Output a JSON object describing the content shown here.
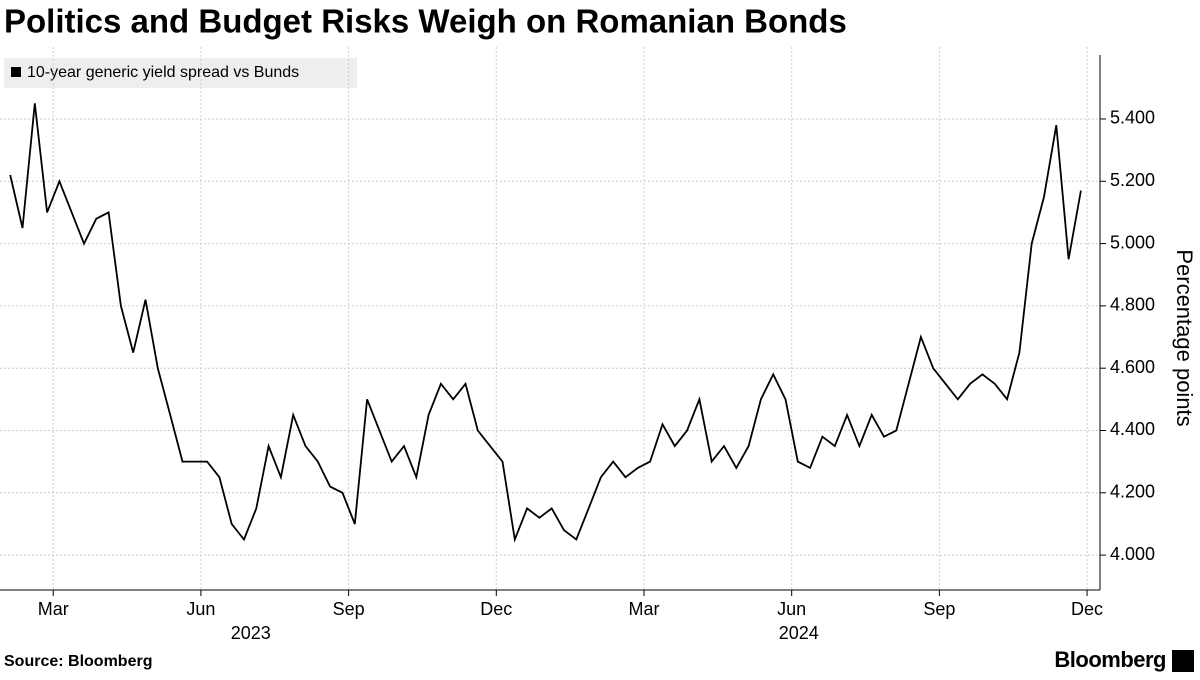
{
  "chart_data": {
    "type": "line",
    "title": "Politics and Budget Risks Weigh on Romanian Bonds",
    "y_axis_label": "Percentage points",
    "source": "Source: Bloomberg",
    "brand": "Bloomberg",
    "x": [
      "2023-02",
      "2023-02",
      "2023-02",
      "2023-02",
      "2023-03",
      "2023-03",
      "2023-03",
      "2023-03",
      "2023-04",
      "2023-04",
      "2023-04",
      "2023-04",
      "2023-05",
      "2023-05",
      "2023-05",
      "2023-05",
      "2023-06",
      "2023-06",
      "2023-06",
      "2023-06",
      "2023-07",
      "2023-07",
      "2023-07",
      "2023-07",
      "2023-08",
      "2023-08",
      "2023-08",
      "2023-08",
      "2023-09",
      "2023-09",
      "2023-09",
      "2023-09",
      "2023-10",
      "2023-10",
      "2023-10",
      "2023-10",
      "2023-11",
      "2023-11",
      "2023-11",
      "2023-11",
      "2023-12",
      "2023-12",
      "2023-12",
      "2023-12",
      "2024-01",
      "2024-01",
      "2024-01",
      "2024-01",
      "2024-02",
      "2024-02",
      "2024-02",
      "2024-02",
      "2024-03",
      "2024-03",
      "2024-03",
      "2024-03",
      "2024-04",
      "2024-04",
      "2024-04",
      "2024-04",
      "2024-05",
      "2024-05",
      "2024-05",
      "2024-05",
      "2024-06",
      "2024-06",
      "2024-06",
      "2024-06",
      "2024-07",
      "2024-07",
      "2024-07",
      "2024-07",
      "2024-08",
      "2024-08",
      "2024-08",
      "2024-08",
      "2024-09",
      "2024-09",
      "2024-09",
      "2024-09",
      "2024-10",
      "2024-10",
      "2024-10",
      "2024-10",
      "2024-11",
      "2024-11",
      "2024-11",
      "2024-11"
    ],
    "series": [
      {
        "name": "10-year generic yield spread vs Bunds",
        "color": "#000000",
        "values": [
          5.22,
          5.05,
          5.45,
          5.1,
          5.2,
          5.1,
          5.0,
          5.08,
          5.1,
          4.8,
          4.65,
          4.82,
          4.6,
          4.45,
          4.3,
          4.3,
          4.3,
          4.25,
          4.1,
          4.05,
          4.15,
          4.35,
          4.25,
          4.45,
          4.35,
          4.3,
          4.22,
          4.2,
          4.1,
          4.5,
          4.4,
          4.3,
          4.35,
          4.25,
          4.45,
          4.55,
          4.5,
          4.55,
          4.4,
          4.35,
          4.3,
          4.05,
          4.15,
          4.12,
          4.15,
          4.08,
          4.05,
          4.15,
          4.25,
          4.3,
          4.25,
          4.28,
          4.3,
          4.42,
          4.35,
          4.4,
          4.5,
          4.3,
          4.35,
          4.28,
          4.35,
          4.5,
          4.58,
          4.5,
          4.3,
          4.28,
          4.38,
          4.35,
          4.45,
          4.35,
          4.45,
          4.38,
          4.4,
          4.55,
          4.7,
          4.6,
          4.55,
          4.5,
          4.55,
          4.58,
          4.55,
          4.5,
          4.65,
          5.0,
          5.15,
          5.38,
          4.95,
          5.17
        ]
      }
    ],
    "xlim": [
      "2023-02",
      "2024-12"
    ],
    "xticks": [
      {
        "value": "2023-03",
        "label": "Mar"
      },
      {
        "value": "2023-06",
        "label": "Jun"
      },
      {
        "value": "2023-09",
        "label": "Sep"
      },
      {
        "value": "2023-12",
        "label": "Dec"
      },
      {
        "value": "2024-03",
        "label": "Mar"
      },
      {
        "value": "2024-06",
        "label": "Jun"
      },
      {
        "value": "2024-09",
        "label": "Sep"
      },
      {
        "value": "2024-12",
        "label": "Dec"
      }
    ],
    "year_labels": [
      "2023",
      "2024"
    ],
    "ylim": [
      3.888,
      5.631
    ],
    "yticks": [
      {
        "value": 4,
        "label": "4.000"
      },
      {
        "value": 4.2,
        "label": "4.200"
      },
      {
        "value": 4.4,
        "label": "4.400"
      },
      {
        "value": 4.6,
        "label": "4.600"
      },
      {
        "value": 4.8,
        "label": "4.800"
      },
      {
        "value": 5,
        "label": "5.000"
      },
      {
        "value": 5.2,
        "label": "5.200"
      },
      {
        "value": 5.4,
        "label": "5.400"
      }
    ],
    "grid": true
  }
}
